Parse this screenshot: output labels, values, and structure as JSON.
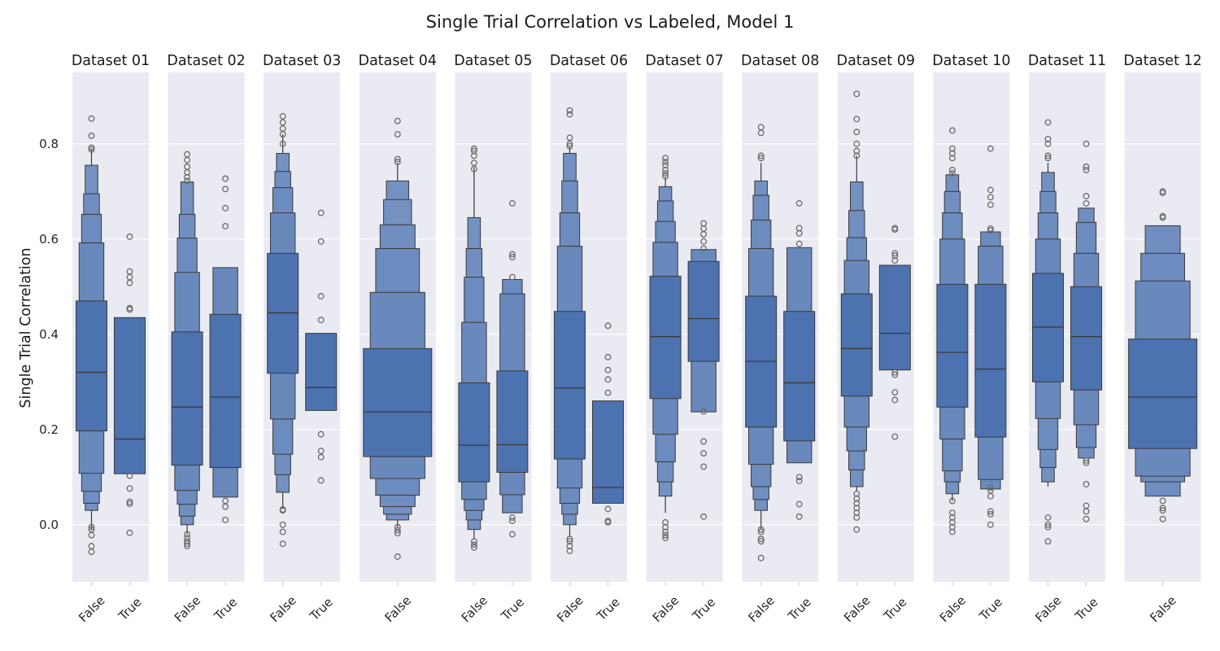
{
  "chart_data": {
    "type": "boxen",
    "title": "Single Trial Correlation vs Labeled, Model 1",
    "ylabel": "Single Trial Correlation",
    "xlabel": "",
    "ylim": [
      -0.12,
      0.95
    ],
    "yticks": [
      "0.0",
      "0.2",
      "0.4",
      "0.6",
      "0.8"
    ],
    "grid": true,
    "colors": {
      "box": "#4c72b0",
      "panel_bg": "#eaeaf2",
      "grid": "#ffffff",
      "edge": "#3a3a3a"
    },
    "panels": [
      {
        "name": "Dataset 01",
        "groups": [
          {
            "label": "False",
            "median": 0.32,
            "boxes": [
              [
                0.197,
                0.47
              ],
              [
                0.108,
                0.592
              ],
              [
                0.07,
                0.652
              ],
              [
                0.045,
                0.695
              ],
              [
                0.03,
                0.755
              ]
            ],
            "whisker": [
              -0.01,
              0.79
            ],
            "outliers": [
              0.853,
              0.817,
              0.792,
              0.788,
              -0.005,
              -0.01,
              -0.022,
              -0.045,
              -0.057
            ]
          },
          {
            "label": "True",
            "median": 0.18,
            "boxes": [
              [
                0.107,
                0.435
              ]
            ],
            "whisker": null,
            "outliers": [
              0.605,
              0.532,
              0.52,
              0.508,
              0.455,
              0.452,
              0.103,
              0.076,
              0.048,
              0.044,
              -0.017
            ]
          }
        ]
      },
      {
        "name": "Dataset 02",
        "groups": [
          {
            "label": "False",
            "median": 0.247,
            "boxes": [
              [
                0.125,
                0.405
              ],
              [
                0.072,
                0.53
              ],
              [
                0.043,
                0.602
              ],
              [
                0.018,
                0.652
              ],
              [
                0.0,
                0.72
              ]
            ],
            "whisker": [
              -0.02,
              0.72
            ],
            "outliers": [
              0.778,
              0.766,
              0.752,
              0.74,
              0.73,
              0.722,
              -0.02,
              -0.028,
              -0.035,
              -0.04,
              -0.045
            ]
          },
          {
            "label": "True",
            "median": 0.268,
            "boxes": [
              [
                0.12,
                0.442
              ],
              [
                0.058,
                0.54
              ]
            ],
            "whisker": null,
            "outliers": [
              0.727,
              0.705,
              0.665,
              0.627,
              0.05,
              0.038,
              0.01
            ]
          }
        ]
      },
      {
        "name": "Dataset 03",
        "groups": [
          {
            "label": "False",
            "median": 0.445,
            "boxes": [
              [
                0.318,
                0.57
              ],
              [
                0.222,
                0.655
              ],
              [
                0.148,
                0.708
              ],
              [
                0.105,
                0.742
              ],
              [
                0.068,
                0.78
              ]
            ],
            "whisker": [
              0.033,
              0.82
            ],
            "outliers": [
              0.858,
              0.845,
              0.832,
              0.82,
              0.8,
              0.032,
              0.03,
              0.0,
              -0.015,
              -0.04
            ]
          },
          {
            "label": "True",
            "median": 0.288,
            "boxes": [
              [
                0.24,
                0.402
              ]
            ],
            "whisker": null,
            "outliers": [
              0.655,
              0.595,
              0.48,
              0.43,
              0.19,
              0.155,
              0.142,
              0.093
            ]
          }
        ]
      },
      {
        "name": "Dataset 04",
        "groups": [
          {
            "label": "False",
            "median": 0.237,
            "boxes": [
              [
                0.143,
                0.37
              ],
              [
                0.097,
                0.488
              ],
              [
                0.062,
                0.58
              ],
              [
                0.038,
                0.63
              ],
              [
                0.022,
                0.683
              ],
              [
                0.01,
                0.722
              ]
            ],
            "whisker": [
              -0.005,
              0.76
            ],
            "outliers": [
              0.848,
              0.82,
              0.768,
              0.762,
              -0.005,
              -0.012,
              -0.018,
              -0.067
            ]
          }
        ]
      },
      {
        "name": "Dataset 05",
        "groups": [
          {
            "label": "False",
            "median": 0.167,
            "boxes": [
              [
                0.09,
                0.298
              ],
              [
                0.053,
                0.425
              ],
              [
                0.03,
                0.52
              ],
              [
                0.01,
                0.58
              ],
              [
                -0.01,
                0.645
              ]
            ],
            "whisker": [
              -0.03,
              0.75
            ],
            "outliers": [
              0.79,
              0.785,
              0.775,
              0.76,
              0.747,
              -0.035,
              -0.042,
              -0.048
            ]
          },
          {
            "label": "True",
            "median": 0.168,
            "boxes": [
              [
                0.11,
                0.323
              ],
              [
                0.063,
                0.485
              ],
              [
                0.025,
                0.515
              ]
            ],
            "whisker": null,
            "outliers": [
              0.675,
              0.568,
              0.562,
              0.52,
              0.015,
              0.008,
              -0.02
            ]
          }
        ]
      },
      {
        "name": "Dataset 06",
        "groups": [
          {
            "label": "False",
            "median": 0.287,
            "boxes": [
              [
                0.138,
                0.448
              ],
              [
                0.077,
                0.585
              ],
              [
                0.045,
                0.655
              ],
              [
                0.022,
                0.722
              ],
              [
                0.0,
                0.78
              ]
            ],
            "whisker": [
              -0.025,
              0.795
            ],
            "outliers": [
              0.87,
              0.862,
              0.813,
              0.8,
              0.795,
              -0.03,
              -0.035,
              -0.045,
              -0.055
            ]
          },
          {
            "label": "True",
            "median": 0.078,
            "boxes": [
              [
                0.045,
                0.26
              ]
            ],
            "whisker": null,
            "outliers": [
              0.418,
              0.352,
              0.325,
              0.305,
              0.277,
              0.033,
              0.008,
              0.005
            ]
          }
        ]
      },
      {
        "name": "Dataset 07",
        "groups": [
          {
            "label": "False",
            "median": 0.395,
            "boxes": [
              [
                0.265,
                0.522
              ],
              [
                0.19,
                0.593
              ],
              [
                0.132,
                0.637
              ],
              [
                0.09,
                0.68
              ],
              [
                0.06,
                0.71
              ]
            ],
            "whisker": [
              0.025,
              0.73
            ],
            "outliers": [
              0.77,
              0.762,
              0.755,
              0.745,
              0.738,
              0.732,
              0.005,
              -0.005,
              -0.015,
              -0.022,
              -0.028
            ]
          },
          {
            "label": "True",
            "median": 0.433,
            "boxes": [
              [
                0.343,
                0.553
              ],
              [
                0.237,
                0.578
              ]
            ],
            "whisker": null,
            "outliers": [
              0.633,
              0.622,
              0.61,
              0.595,
              0.58,
              0.238,
              0.175,
              0.15,
              0.122,
              0.017
            ]
          }
        ]
      },
      {
        "name": "Dataset 08",
        "groups": [
          {
            "label": "False",
            "median": 0.343,
            "boxes": [
              [
                0.205,
                0.48
              ],
              [
                0.127,
                0.58
              ],
              [
                0.08,
                0.64
              ],
              [
                0.053,
                0.692
              ],
              [
                0.03,
                0.722
              ]
            ],
            "whisker": [
              -0.01,
              0.76
            ],
            "outliers": [
              0.835,
              0.823,
              0.775,
              0.77,
              -0.01,
              -0.015,
              -0.03,
              -0.035,
              -0.07
            ]
          },
          {
            "label": "True",
            "median": 0.298,
            "boxes": [
              [
                0.176,
                0.448
              ],
              [
                0.13,
                0.582
              ]
            ],
            "whisker": null,
            "outliers": [
              0.675,
              0.623,
              0.612,
              0.59,
              0.1,
              0.092,
              0.043,
              0.017
            ]
          }
        ]
      },
      {
        "name": "Dataset 09",
        "groups": [
          {
            "label": "False",
            "median": 0.37,
            "boxes": [
              [
                0.27,
                0.485
              ],
              [
                0.205,
                0.555
              ],
              [
                0.155,
                0.603
              ],
              [
                0.115,
                0.66
              ],
              [
                0.08,
                0.72
              ]
            ],
            "whisker": [
              0.07,
              0.775
            ],
            "outliers": [
              0.905,
              0.852,
              0.825,
              0.8,
              0.785,
              0.775,
              0.065,
              0.055,
              0.045,
              0.035,
              0.025,
              0.015,
              -0.01
            ]
          },
          {
            "label": "True",
            "median": 0.402,
            "boxes": [
              [
                0.325,
                0.545
              ]
            ],
            "whisker": null,
            "outliers": [
              0.623,
              0.62,
              0.57,
              0.565,
              0.555,
              0.32,
              0.315,
              0.278,
              0.262,
              0.185
            ]
          }
        ]
      },
      {
        "name": "Dataset 10",
        "groups": [
          {
            "label": "False",
            "median": 0.362,
            "boxes": [
              [
                0.247,
                0.505
              ],
              [
                0.18,
                0.6
              ],
              [
                0.113,
                0.655
              ],
              [
                0.09,
                0.7
              ],
              [
                0.065,
                0.735
              ]
            ],
            "whisker": [
              0.05,
              0.74
            ],
            "outliers": [
              0.828,
              0.79,
              0.78,
              0.77,
              0.745,
              0.738,
              0.05,
              0.025,
              0.015,
              0.005,
              -0.005,
              -0.015
            ]
          },
          {
            "label": "True",
            "median": 0.327,
            "boxes": [
              [
                0.184,
                0.505
              ],
              [
                0.095,
                0.585
              ],
              [
                0.075,
                0.615
              ]
            ],
            "whisker": null,
            "outliers": [
              0.79,
              0.703,
              0.688,
              0.672,
              0.622,
              0.618,
              0.078,
              0.072,
              0.06,
              0.028,
              0.022,
              0.0
            ]
          }
        ]
      },
      {
        "name": "Dataset 11",
        "groups": [
          {
            "label": "False",
            "median": 0.415,
            "boxes": [
              [
                0.3,
                0.528
              ],
              [
                0.223,
                0.6
              ],
              [
                0.158,
                0.655
              ],
              [
                0.12,
                0.7
              ],
              [
                0.09,
                0.74
              ]
            ],
            "whisker": [
              0.08,
              0.76
            ],
            "outliers": [
              0.845,
              0.81,
              0.8,
              0.775,
              0.77,
              0.015,
              0.0,
              -0.005,
              -0.035
            ]
          },
          {
            "label": "True",
            "median": 0.395,
            "boxes": [
              [
                0.283,
                0.5
              ],
              [
                0.21,
                0.57
              ],
              [
                0.162,
                0.635
              ],
              [
                0.14,
                0.665
              ]
            ],
            "whisker": null,
            "outliers": [
              0.8,
              0.752,
              0.745,
              0.69,
              0.675,
              0.135,
              0.13,
              0.085,
              0.04,
              0.028,
              0.012
            ]
          }
        ]
      },
      {
        "name": "Dataset 12",
        "groups": [
          {
            "label": "False",
            "median": 0.268,
            "boxes": [
              [
                0.16,
                0.39
              ],
              [
                0.102,
                0.512
              ],
              [
                0.09,
                0.57
              ],
              [
                0.06,
                0.628
              ]
            ],
            "whisker": null,
            "outliers": [
              0.7,
              0.697,
              0.648,
              0.645,
              0.05,
              0.035,
              0.03,
              0.012
            ]
          }
        ]
      }
    ]
  }
}
